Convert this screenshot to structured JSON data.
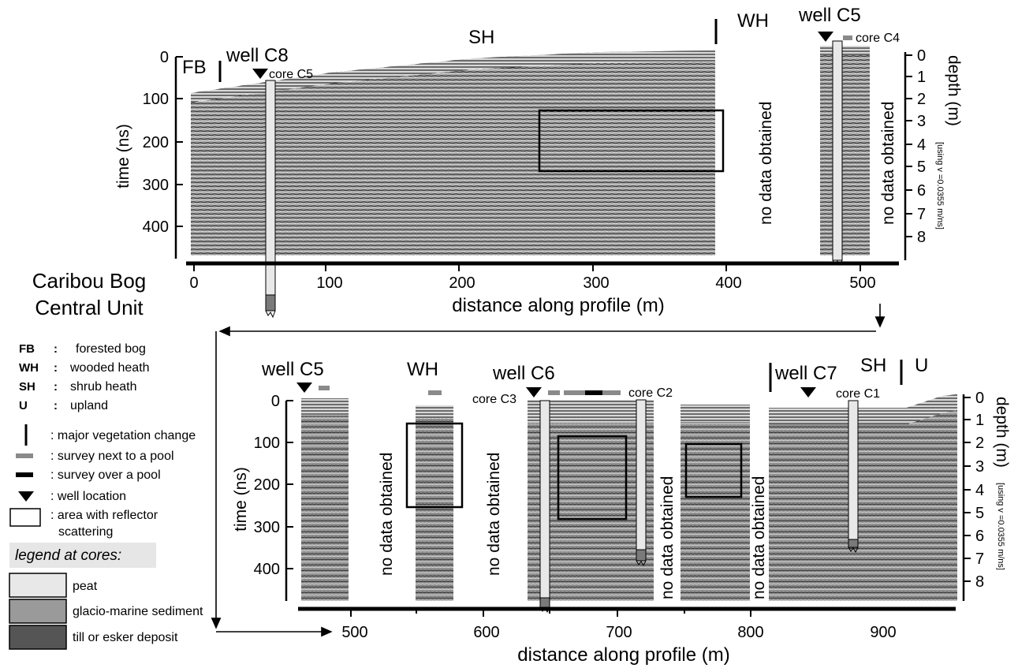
{
  "figure": {
    "site_title_line1": "Caribou Bog",
    "site_title_line2": "Central Unit",
    "nodata": "no data obtained"
  },
  "top_panel": {
    "zones": {
      "fb": "FB",
      "sh": "SH",
      "wh": "WH"
    },
    "wells": {
      "c8": "well C8",
      "c5": "well C5"
    },
    "cores": {
      "c5": "core C5",
      "c4": "core C4"
    },
    "time_axis_label": "time (ns)",
    "time_ticks": [
      "0",
      "100",
      "200",
      "300",
      "400"
    ],
    "depth_axis_label": "depth (m)",
    "depth_note": "[using v =0.0355 m/ns]",
    "depth_ticks": [
      "0",
      "1",
      "2",
      "3",
      "4",
      "5",
      "6",
      "7",
      "8"
    ],
    "distance_ticks": [
      "0",
      "100",
      "200",
      "300",
      "400",
      "500"
    ],
    "xlabel": "distance along profile (m)"
  },
  "bottom_panel": {
    "zones": {
      "wh": "WH",
      "sh": "SH",
      "u": "U"
    },
    "wells": {
      "c5": "well C5",
      "c6": "well C6",
      "c7": "well C7"
    },
    "cores": {
      "c3": "core C3",
      "c2": "core C2",
      "c1": "core C1"
    },
    "time_axis_label": "time (ns)",
    "time_ticks": [
      "0",
      "100",
      "200",
      "300",
      "400"
    ],
    "depth_axis_label": "depth (m)",
    "depth_note": "[using v =0.0355 m/ns]",
    "depth_ticks": [
      "0",
      "1",
      "2",
      "3",
      "4",
      "5",
      "6",
      "7",
      "8"
    ],
    "distance_ticks": [
      "500",
      "600",
      "700",
      "800",
      "900"
    ],
    "xlabel": "distance along profile (m)"
  },
  "legend": {
    "abbreviations": [
      {
        "code": "FB",
        "sep": ":",
        "text": "forested bog"
      },
      {
        "code": "WH",
        "sep": ":",
        "text": "wooded heath"
      },
      {
        "code": "SH",
        "sep": ":",
        "text": "shrub heath"
      },
      {
        "code": "U",
        "sep": ":",
        "text": "upland"
      }
    ],
    "symbols": {
      "veg_change": ": major vegetation change",
      "next_pool": ": survey next to a pool",
      "over_pool": ": survey over a pool",
      "well": ": well location",
      "scatter_1": ": area with reflector",
      "scatter_2": "scattering"
    },
    "cores_title": "legend at cores:",
    "core_types": [
      {
        "label": "peat",
        "color": "#e8e8e8"
      },
      {
        "label": "glacio-marine sediment",
        "color": "#9a9a9a"
      },
      {
        "label": "till or esker deposit",
        "color": "#555555"
      }
    ]
  },
  "colors": {
    "radargram": "#8c8c8c",
    "peat": "#e8e8e8",
    "glacio_marine": "#9a9a9a",
    "till": "#555555",
    "next_pool": "#8a8a8a",
    "over_pool": "#000000"
  }
}
